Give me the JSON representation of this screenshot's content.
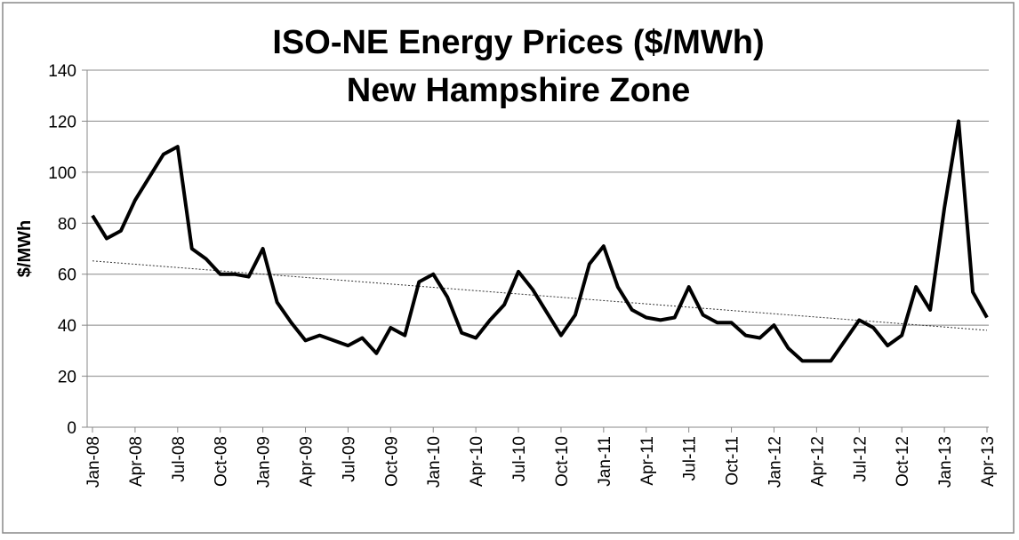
{
  "chart_data": {
    "type": "line",
    "title": [
      "ISO-NE Energy Prices ($/MWh)",
      "New Hampshire Zone"
    ],
    "y_label": "$/MWh",
    "categories": [
      "Jan-08",
      null,
      null,
      "Apr-08",
      null,
      null,
      "Jul-08",
      null,
      null,
      "Oct-08",
      null,
      null,
      "Jan-09",
      null,
      null,
      "Apr-09",
      null,
      null,
      "Jul-09",
      null,
      null,
      "Oct-09",
      null,
      null,
      "Jan-10",
      null,
      null,
      "Apr-10",
      null,
      null,
      "Jul-10",
      null,
      null,
      "Oct-10",
      null,
      null,
      "Jan-11",
      null,
      null,
      "Apr-11",
      null,
      null,
      "Jul-11",
      null,
      null,
      "Oct-11",
      null,
      null,
      "Jan-12",
      null,
      null,
      "Apr-12",
      null,
      null,
      "Jul-12",
      null,
      null,
      "Oct-12",
      null,
      null,
      "Jan-13",
      null,
      null,
      "Apr-13"
    ],
    "values": [
      83,
      74,
      77,
      89,
      98,
      107,
      110,
      70,
      66,
      60,
      60,
      59,
      70,
      49,
      41,
      34,
      36,
      34,
      32,
      35,
      29,
      39,
      36,
      57,
      60,
      51,
      37,
      35,
      42,
      48,
      61,
      54,
      45,
      36,
      44,
      64,
      71,
      55,
      46,
      43,
      42,
      43,
      55,
      44,
      41,
      41,
      36,
      35,
      40,
      31,
      26,
      26,
      26,
      34,
      42,
      39,
      32,
      36,
      55,
      46,
      86,
      120,
      53,
      43
    ],
    "color": "#000000",
    "trendline": [
      65.2,
      38.0
    ],
    "ylim": [
      0,
      140
    ],
    "yticks": [
      0,
      20,
      40,
      60,
      80,
      100,
      120,
      140
    ],
    "grid": true
  }
}
